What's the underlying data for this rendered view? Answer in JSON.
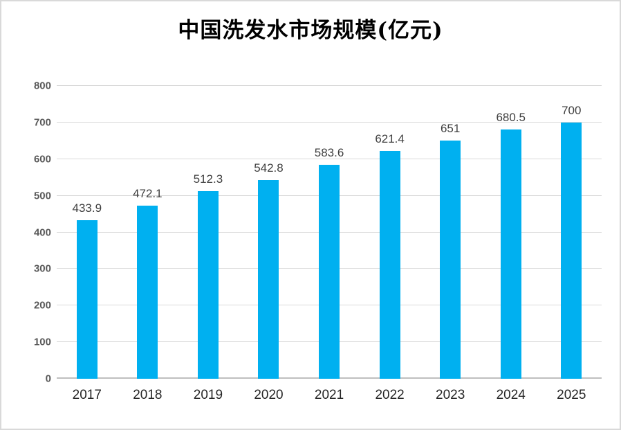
{
  "page": {
    "background": "#ffffff",
    "border_color": "#d9d9d9"
  },
  "chart_data": {
    "type": "bar",
    "title": "中国洗发水市场规模(亿元)",
    "categories": [
      "2017",
      "2018",
      "2019",
      "2020",
      "2021",
      "2022",
      "2023",
      "2024",
      "2025"
    ],
    "values": [
      433.9,
      472.1,
      512.3,
      542.8,
      583.6,
      621.4,
      651,
      680.5,
      700
    ],
    "value_labels": [
      "433.9",
      "472.1",
      "512.3",
      "542.8",
      "583.6",
      "621.4",
      "651",
      "680.5",
      "700"
    ],
    "xlabel": "",
    "ylabel": "",
    "ylim": [
      0,
      800
    ],
    "ytick_step": 100,
    "ytick_labels": [
      "0",
      "100",
      "200",
      "300",
      "400",
      "500",
      "600",
      "700",
      "800"
    ],
    "grid": true,
    "legend": false,
    "colors": {
      "bar": "#00B0F0",
      "gridline": "#d9d9d9",
      "baseline": "#bfbfbf",
      "ytick_text": "#595959",
      "xtick_text": "#262626",
      "value_label_text": "#3f3f3f",
      "title_text": "#000000"
    }
  }
}
